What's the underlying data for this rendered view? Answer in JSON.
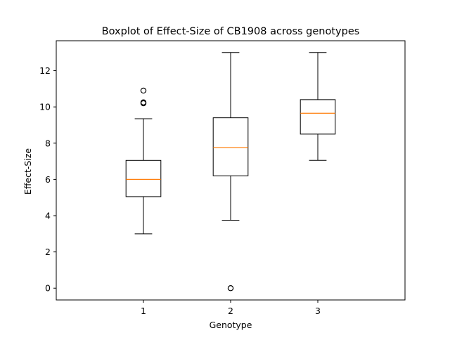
{
  "chart_data": {
    "type": "boxplot",
    "title": "Boxplot of Effect-Size of CB1908 across genotypes",
    "xlabel": "Genotype",
    "ylabel": "Effect-Size",
    "categories": [
      "1",
      "2",
      "3"
    ],
    "ylim": [
      -0.65,
      13.65
    ],
    "yticks": [
      0,
      2,
      4,
      6,
      8,
      10,
      12
    ],
    "grid": false,
    "boxes": [
      {
        "category": "1",
        "whisker_low": 3.0,
        "q1": 5.05,
        "median": 6.0,
        "q3": 7.05,
        "whisker_high": 9.35,
        "outliers": [
          10.2,
          10.25,
          10.9
        ]
      },
      {
        "category": "2",
        "whisker_low": 3.75,
        "q1": 6.2,
        "median": 7.75,
        "q3": 9.4,
        "whisker_high": 13.0,
        "outliers": [
          0.0
        ]
      },
      {
        "category": "3",
        "whisker_low": 7.05,
        "q1": 8.5,
        "median": 9.65,
        "q3": 10.4,
        "whisker_high": 13.0,
        "outliers": []
      }
    ],
    "colors": {
      "box": "#000000",
      "median": "#ff7f0e"
    }
  }
}
